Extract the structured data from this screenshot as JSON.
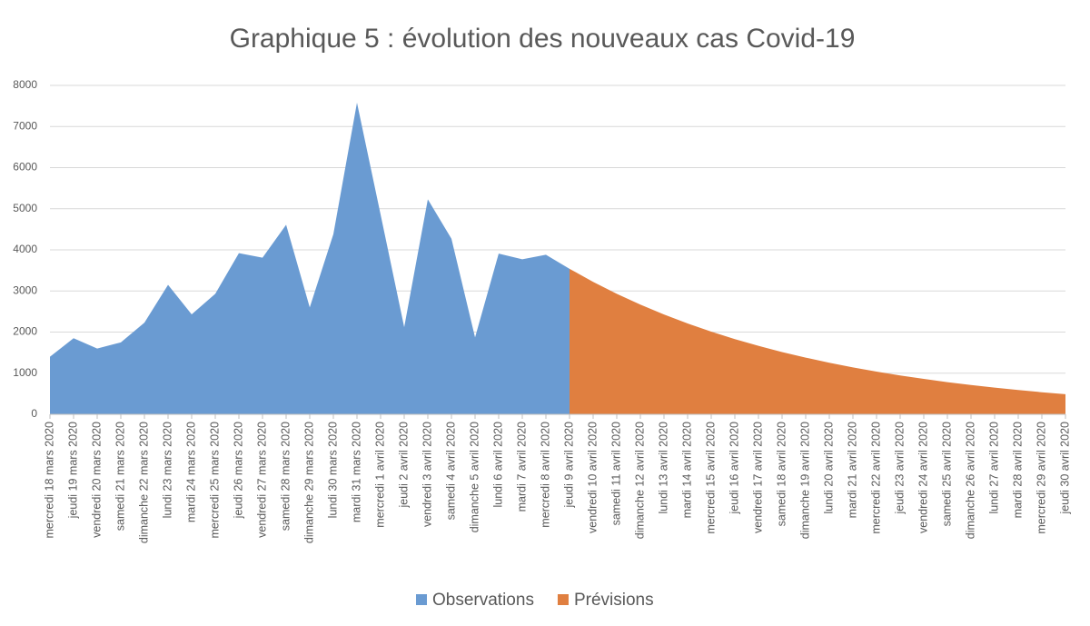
{
  "chart_data": {
    "type": "area",
    "title": "Graphique 5 : évolution des nouveaux cas Covid-19",
    "categories": [
      "mercredi 18 mars 2020",
      "jeudi 19 mars 2020",
      "vendredi 20 mars 2020",
      "samedi 21 mars 2020",
      "dimanche 22 mars 2020",
      "lundi 23 mars 2020",
      "mardi 24 mars 2020",
      "mercredi 25 mars 2020",
      "jeudi 26 mars 2020",
      "vendredi 27 mars 2020",
      "samedi 28 mars 2020",
      "dimanche 29 mars 2020",
      "lundi 30 mars 2020",
      "mardi 31 mars 2020",
      "mercredi 1 avril 2020",
      "jeudi 2 avril 2020",
      "vendredi 3 avril 2020",
      "samedi 4 avril 2020",
      "dimanche 5 avril 2020",
      "lundi 6 avril 2020",
      "mardi 7 avril 2020",
      "mercredi 8 avril 2020",
      "jeudi 9 avril 2020",
      "vendredi 10 avril 2020",
      "samedi 11 avril 2020",
      "dimanche 12 avril 2020",
      "lundi 13 avril 2020",
      "mardi 14 avril 2020",
      "mercredi 15 avril 2020",
      "jeudi 16 avril 2020",
      "vendredi 17 avril 2020",
      "samedi 18 avril 2020",
      "dimanche 19 avril 2020",
      "lundi 20 avril 2020",
      "mardi 21 avril 2020",
      "mercredi 22 avril 2020",
      "jeudi 23 avril 2020",
      "vendredi 24 avril 2020",
      "samedi 25 avril 2020",
      "dimanche 26 avril 2020",
      "lundi 27 avril 2020",
      "mardi 28 avril 2020",
      "mercredi 29 avril 2020",
      "jeudi 30 avril 2020"
    ],
    "series": [
      {
        "name": "Observations",
        "color": "#6a9bd2",
        "values": [
          1400,
          1850,
          1600,
          1750,
          2230,
          3150,
          2430,
          2930,
          3920,
          3810,
          4610,
          2600,
          4380,
          7580,
          4860,
          2120,
          5230,
          4270,
          1870,
          3910,
          3770,
          3880,
          3540,
          null,
          null,
          null,
          null,
          null,
          null,
          null,
          null,
          null,
          null,
          null,
          null,
          null,
          null,
          null,
          null,
          null,
          null,
          null,
          null,
          null
        ]
      },
      {
        "name": "Prévisions",
        "color": "#e07f40",
        "values": [
          null,
          null,
          null,
          null,
          null,
          null,
          null,
          null,
          null,
          null,
          null,
          null,
          null,
          null,
          null,
          null,
          null,
          null,
          null,
          null,
          null,
          null,
          3540,
          3222,
          2932,
          2668,
          2428,
          2210,
          2011,
          1830,
          1665,
          1515,
          1379,
          1255,
          1142,
          1039,
          946,
          861,
          783,
          713,
          649,
          590,
          537,
          489
        ]
      }
    ],
    "ylim": [
      0,
      8000
    ],
    "yticks": [
      0,
      1000,
      2000,
      3000,
      4000,
      5000,
      6000,
      7000,
      8000
    ],
    "grid": true,
    "legend": "bottom"
  }
}
